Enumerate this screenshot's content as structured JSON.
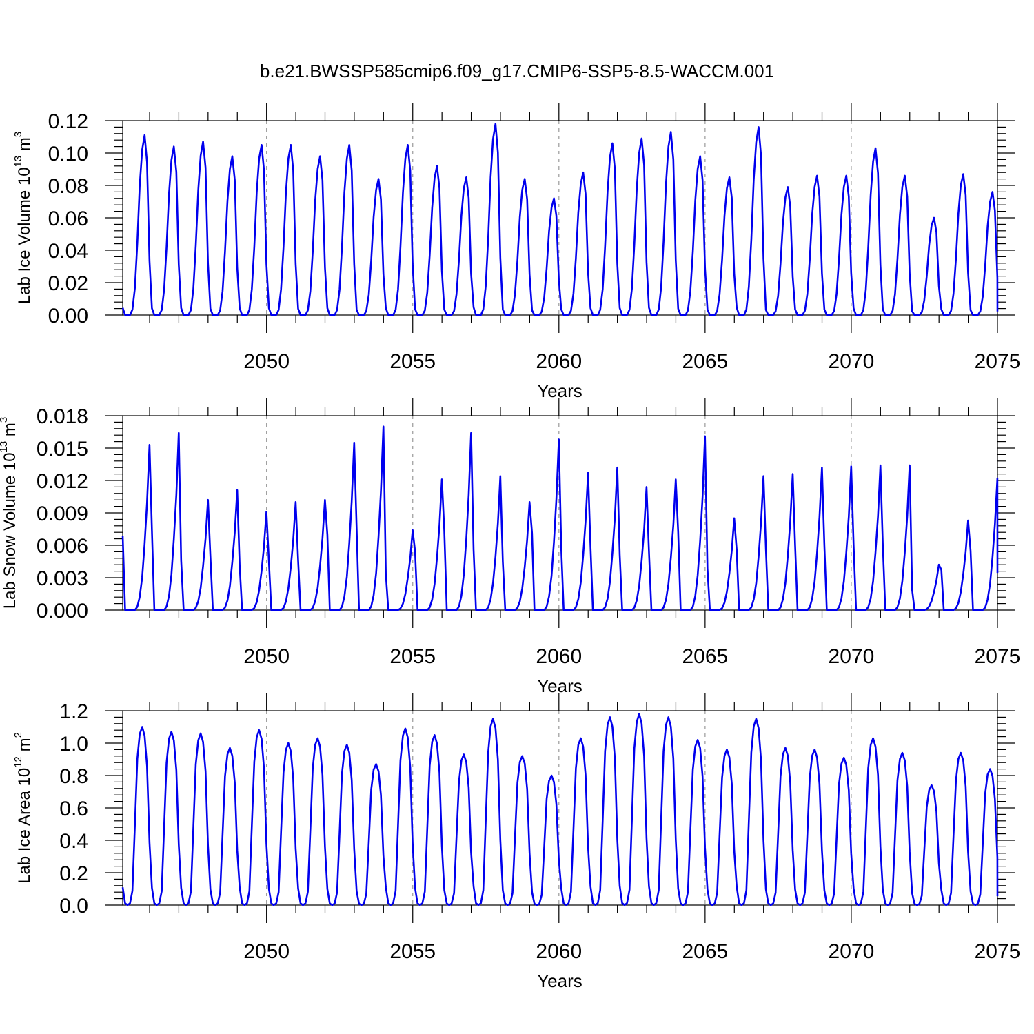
{
  "figure": {
    "title": "b.e21.BWSSP585cmip6.f09_g17.CMIP6-SSP5-8.5-WACCM.001"
  },
  "colors": {
    "line": "#0000ee",
    "grid": "#9a9a9a",
    "axis": "#000000"
  },
  "chart_data": [
    {
      "type": "line",
      "id": "ice-volume",
      "ylabel": "Lab Ice Volume 10",
      "ylabel_exp": "13",
      "ylabel_unit": " m",
      "ylabel_unit_exp": "3",
      "xlabel": "Years",
      "xlim": [
        2045.08,
        2075.0
      ],
      "ylim": [
        0.0,
        0.12
      ],
      "xticks": [
        2050,
        2055,
        2060,
        2065,
        2070,
        2075
      ],
      "yticks": [
        "0.00",
        "0.02",
        "0.04",
        "0.06",
        "0.08",
        "0.10",
        "0.12"
      ],
      "start_year": 2045.08,
      "annual_peaks": [
        0.111,
        0.104,
        0.107,
        0.098,
        0.105,
        0.105,
        0.098,
        0.105,
        0.084,
        0.105,
        0.092,
        0.085,
        0.118,
        0.084,
        0.072,
        0.088,
        0.106,
        0.109,
        0.113,
        0.098,
        0.085,
        0.116,
        0.079,
        0.086,
        0.086,
        0.103,
        0.086,
        0.06,
        0.087,
        0.076
      ],
      "monthly_shape": [
        0.04,
        0.0,
        0.0,
        0.0,
        0.03,
        0.15,
        0.4,
        0.72,
        0.92,
        1.0,
        0.85,
        0.3
      ],
      "series": [
        {
          "name": "Lab Ice Volume"
        }
      ]
    },
    {
      "type": "line",
      "id": "snow-volume",
      "ylabel": "Lab Snow Volume 10",
      "ylabel_exp": "13",
      "ylabel_unit": " m",
      "ylabel_unit_exp": "3",
      "xlabel": "Years",
      "xlim": [
        2045.08,
        2075.0
      ],
      "ylim": [
        0.0,
        0.018
      ],
      "xticks": [
        2050,
        2055,
        2060,
        2065,
        2070,
        2075
      ],
      "yticks": [
        "0.000",
        "0.003",
        "0.006",
        "0.009",
        "0.012",
        "0.015",
        "0.018"
      ],
      "start_year": 2045.08,
      "annual_peaks": [
        0.0153,
        0.0164,
        0.0102,
        0.0111,
        0.0091,
        0.01,
        0.0102,
        0.0155,
        0.017,
        0.0074,
        0.0121,
        0.0164,
        0.0124,
        0.01,
        0.0158,
        0.0127,
        0.0132,
        0.0114,
        0.0121,
        0.0161,
        0.0085,
        0.0124,
        0.0126,
        0.0132,
        0.0133,
        0.0134,
        0.0134,
        0.0042,
        0.0083,
        0.0122
      ],
      "monthly_shape": [
        0.45,
        0.0,
        0.0,
        0.0,
        0.0,
        0.0,
        0.02,
        0.08,
        0.2,
        0.4,
        0.65,
        1.0
      ],
      "series": [
        {
          "name": "Lab Snow Volume"
        }
      ]
    },
    {
      "type": "line",
      "id": "ice-area",
      "ylabel": "Lab Ice Area 10",
      "ylabel_exp": "12",
      "ylabel_unit": " m",
      "ylabel_unit_exp": "2",
      "xlabel": "Years",
      "xlim": [
        2045.08,
        2075.0
      ],
      "ylim": [
        0.0,
        1.2
      ],
      "xticks": [
        2050,
        2055,
        2060,
        2065,
        2070,
        2075
      ],
      "yticks": [
        "0.0",
        "0.2",
        "0.4",
        "0.6",
        "0.8",
        "1.0",
        "1.2"
      ],
      "start_year": 2045.08,
      "annual_peaks": [
        1.1,
        1.07,
        1.06,
        0.97,
        1.08,
        1.0,
        1.03,
        0.99,
        0.87,
        1.09,
        1.05,
        0.93,
        1.15,
        0.92,
        0.8,
        1.03,
        1.16,
        1.18,
        1.16,
        1.02,
        0.96,
        1.15,
        0.97,
        0.96,
        0.91,
        1.03,
        0.94,
        0.74,
        0.94,
        0.84
      ],
      "monthly_shape": [
        0.1,
        0.01,
        0.0,
        0.01,
        0.08,
        0.45,
        0.82,
        0.96,
        1.0,
        0.95,
        0.78,
        0.35
      ],
      "series": [
        {
          "name": "Lab Ice Area"
        }
      ]
    }
  ]
}
